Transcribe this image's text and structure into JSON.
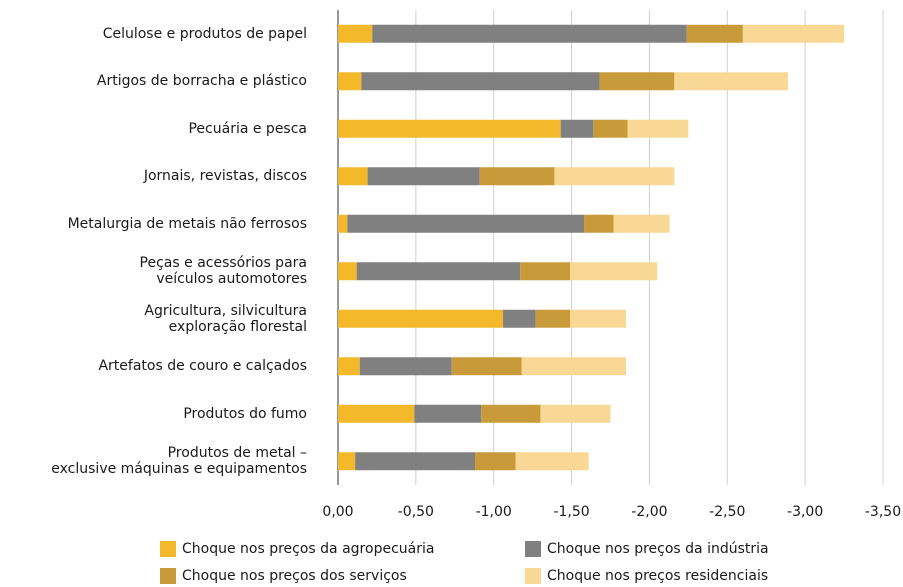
{
  "chart_data": {
    "type": "stacked-barh",
    "categories": [
      "Celulose e produtos de papel",
      "Artigos de borracha e plástico",
      "Pecuária e pesca",
      "Jornais, revistas, discos",
      "Metalurgia de metais não ferrosos",
      "Peças e acessórios para\nveículos automotores",
      "Agricultura, silvicultura\nexploração florestal",
      "Artefatos de couro e calçados",
      "Produtos do fumo",
      "Produtos de metal –\nexclusive máquinas e equipamentos"
    ],
    "series": [
      {
        "name": "Choque nos preços da agropecuária",
        "color": "#f4b92a",
        "values": [
          -0.22,
          -0.15,
          -1.43,
          -0.19,
          -0.06,
          -0.12,
          -1.06,
          -0.14,
          -0.49,
          -0.11
        ]
      },
      {
        "name": "Choque nos preços da indústria",
        "color": "#808080",
        "values": [
          -2.02,
          -1.53,
          -0.21,
          -0.72,
          -1.52,
          -1.05,
          -0.21,
          -0.59,
          -0.43,
          -0.77
        ]
      },
      {
        "name": "Choque nos preços dos serviços",
        "color": "#c99a3a",
        "values": [
          -0.36,
          -0.48,
          -0.22,
          -0.48,
          -0.19,
          -0.32,
          -0.22,
          -0.45,
          -0.38,
          -0.26
        ]
      },
      {
        "name": "Choque nos preços residenciais",
        "color": "#f9d795",
        "values": [
          -0.65,
          -0.73,
          -0.39,
          -0.77,
          -0.36,
          -0.56,
          -0.36,
          -0.67,
          -0.45,
          -0.47
        ]
      }
    ],
    "xlim": [
      0,
      -3.5
    ],
    "xticks": [
      {
        "value": 0,
        "label": "0,00"
      },
      {
        "value": -0.5,
        "label": "-0,50"
      },
      {
        "value": -1,
        "label": "-1,00"
      },
      {
        "value": -1.5,
        "label": "-1,50"
      },
      {
        "value": -2,
        "label": "-2,00"
      },
      {
        "value": -2.5,
        "label": "-2,50"
      },
      {
        "value": -3,
        "label": "-3,00"
      },
      {
        "value": -3.5,
        "label": "-3,50"
      }
    ],
    "grid": true
  }
}
